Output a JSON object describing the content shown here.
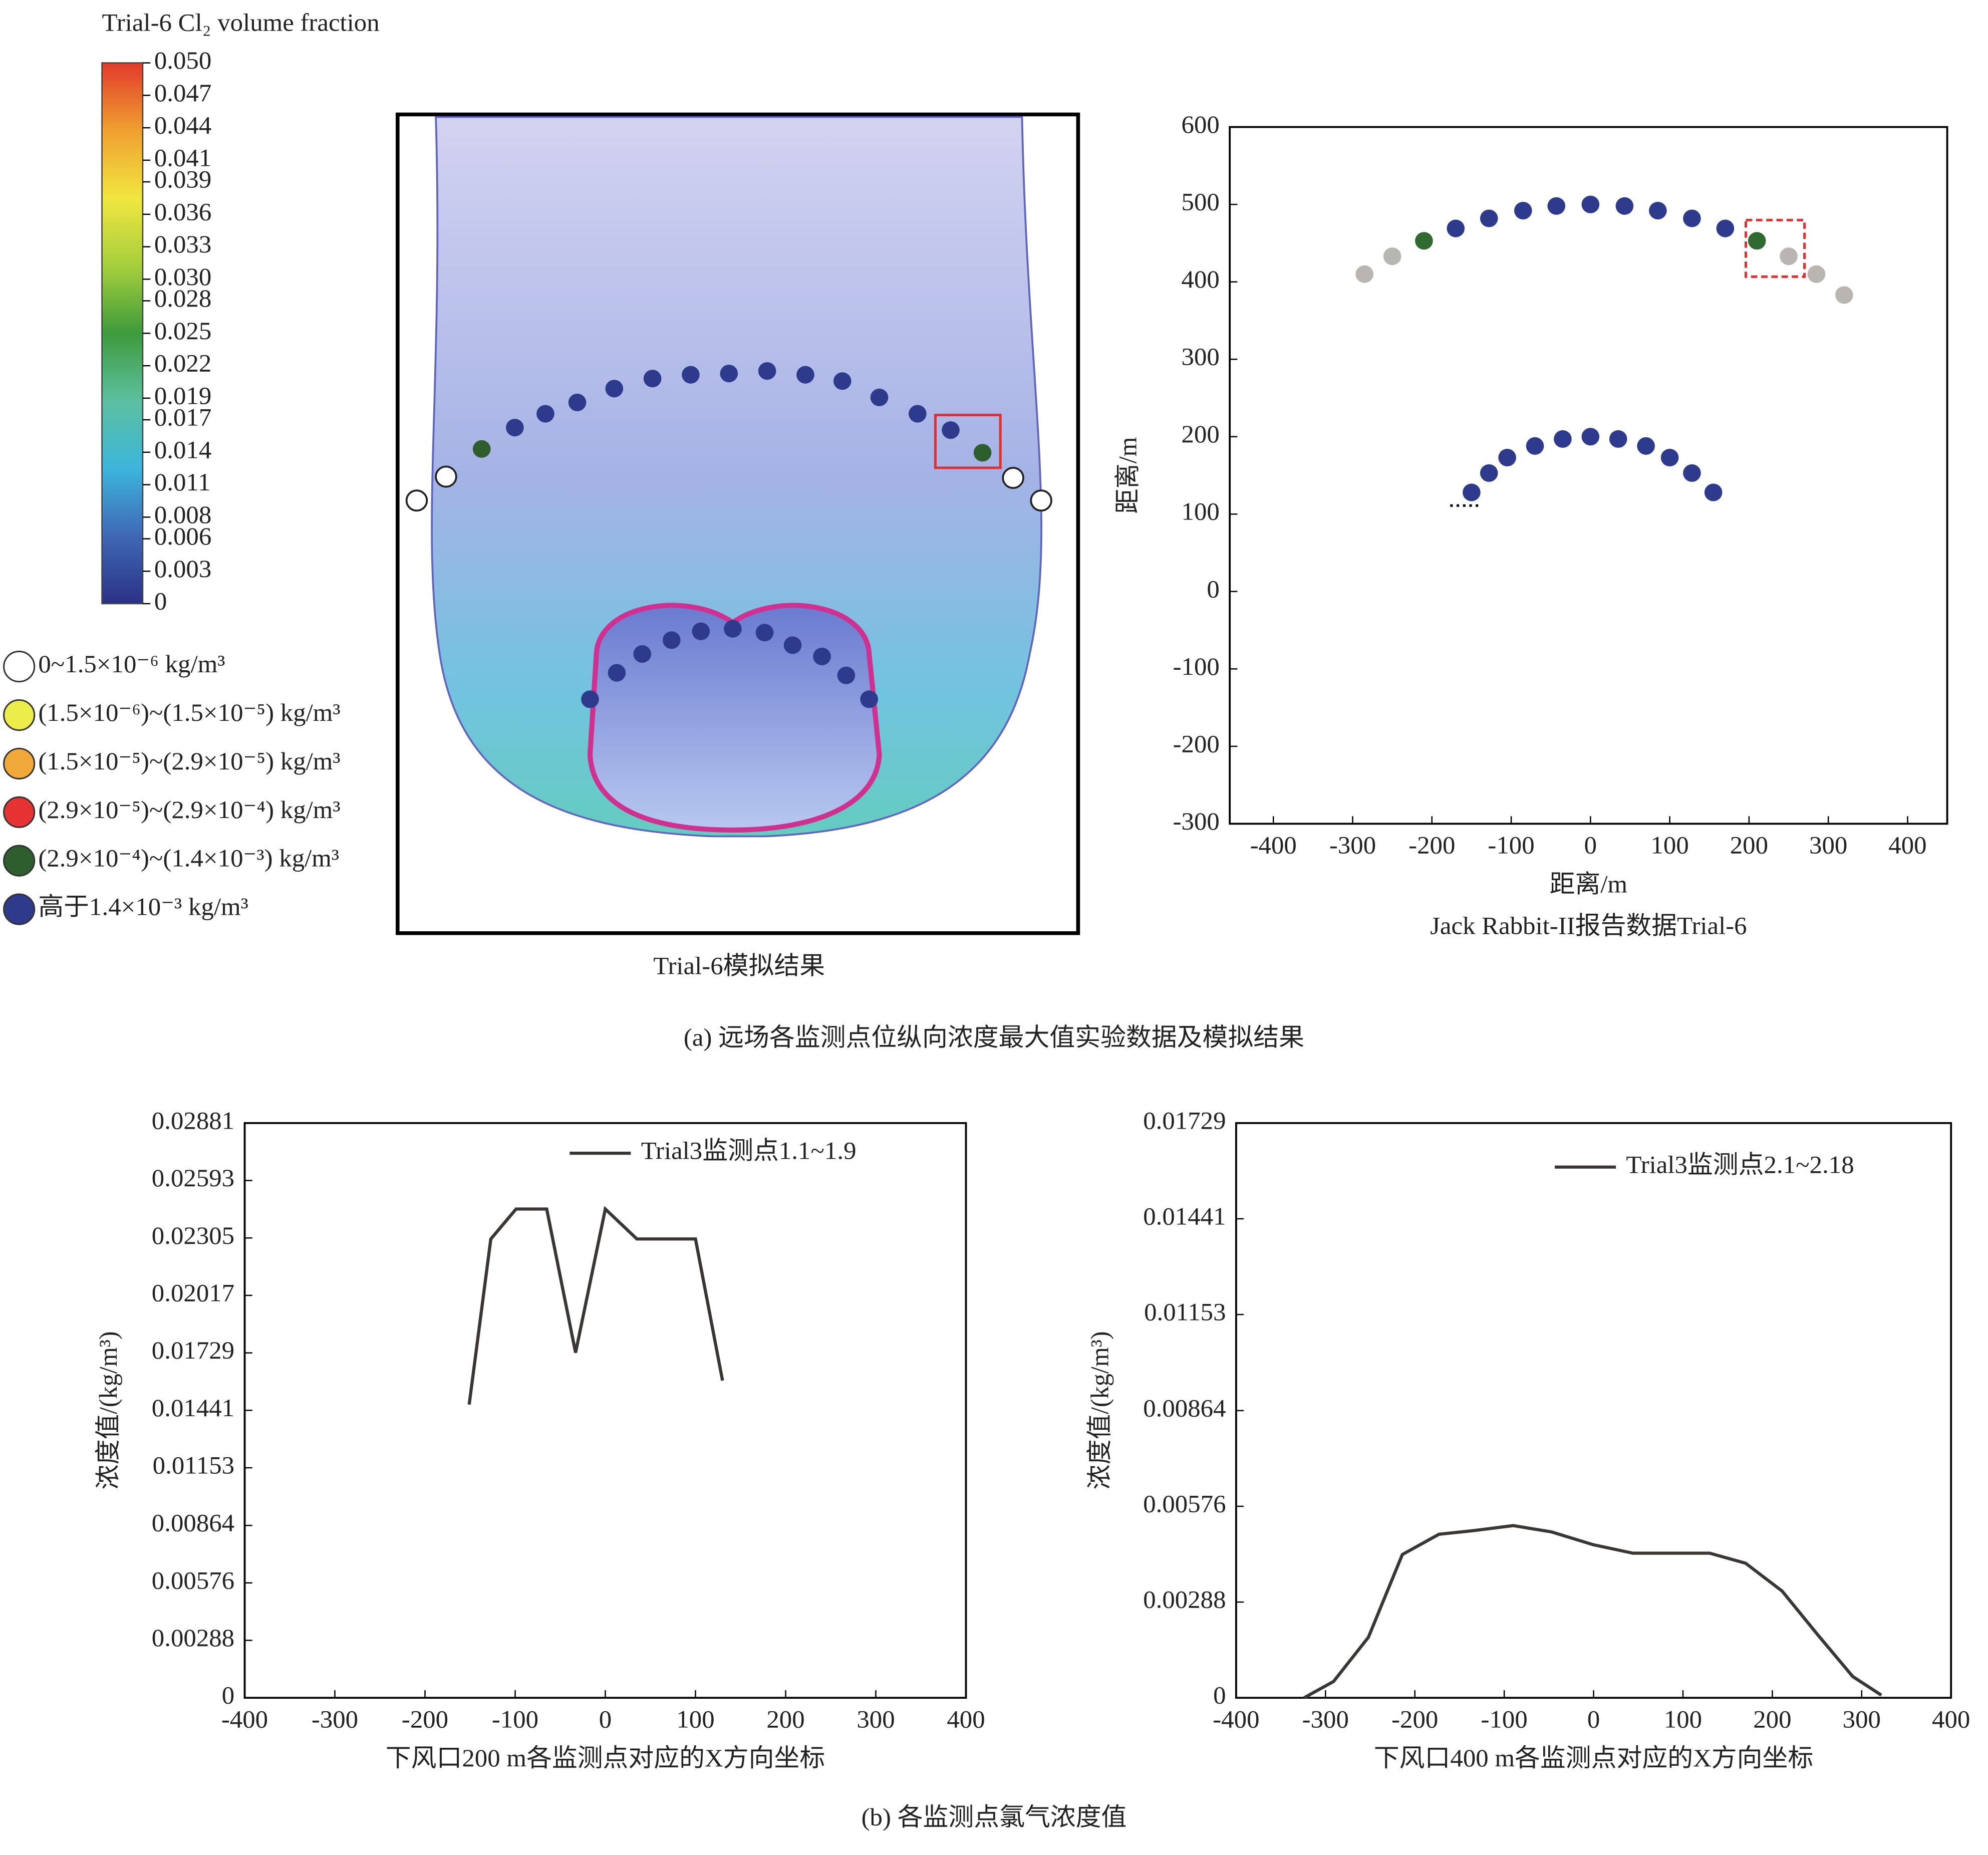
{
  "chart_data": [
    {
      "type": "colormap",
      "title": "Trial-6 Cl₂ volume fraction",
      "xlabel": "Trial-6模拟结果",
      "ylim": [
        0,
        0.05
      ],
      "yticks": [
        0,
        {
          "value": 0.003,
          "label": "0.003"
        },
        {
          "value": 0.006,
          "label": "0.006"
        },
        {
          "value": 0.008,
          "label": "0.008"
        },
        {
          "value": 0.011,
          "label": "0.011"
        },
        {
          "value": 0.014,
          "label": "0.014"
        },
        {
          "value": 0.017,
          "label": "0.017"
        },
        {
          "value": 0.019,
          "label": "0.019"
        },
        {
          "value": 0.022,
          "label": "0.022"
        },
        {
          "value": 0.025,
          "label": "0.025"
        },
        {
          "value": 0.028,
          "label": "0.028"
        },
        {
          "value": 0.03,
          "label": "0.030"
        },
        {
          "value": 0.033,
          "label": "0.033"
        },
        {
          "value": 0.036,
          "label": "0.036"
        },
        {
          "value": 0.039,
          "label": "0.039"
        },
        {
          "value": 0.041,
          "label": "0.041"
        },
        {
          "value": 0.044,
          "label": "0.044"
        },
        {
          "value": 0.047,
          "label": "0.047"
        },
        {
          "value": 0.05,
          "label": "0.050"
        }
      ],
      "colors": [
        "#2b3186",
        "#3f68b5",
        "#3db5dc",
        "#5cc0a0",
        "#3e9a3c",
        "#a6cf3c",
        "#f1e640",
        "#f0a030",
        "#e23a2c"
      ],
      "legend": [
        {
          "label": "0~1.5×10⁻⁶ kg/m³",
          "color": "#ffffff"
        },
        {
          "label": "(1.5×10⁻⁶)~(1.5×10⁻⁵) kg/m³",
          "color": "#ecec4a"
        },
        {
          "label": "(1.5×10⁻⁵)~(2.9×10⁻⁵) kg/m³",
          "color": "#f0a838"
        },
        {
          "label": "(2.9×10⁻⁵)~(2.9×10⁻⁴) kg/m³",
          "color": "#e63232"
        },
        {
          "label": "(2.9×10⁻⁴)~(1.4×10⁻³) kg/m³",
          "color": "#2e5e2e"
        },
        {
          "label": "高于1.4×10⁻³ kg/m³",
          "color": "#2e3a8c"
        }
      ]
    },
    {
      "type": "scatter",
      "title": "Jack Rabbit-II报告数据Trial-6",
      "xlabel": "距离/m",
      "ylabel": "距离/m",
      "xlim": [
        -455,
        450
      ],
      "ylim": [
        -300,
        600
      ],
      "xticks": [
        -400,
        -300,
        -200,
        -100,
        0,
        100,
        200,
        300,
        400
      ],
      "yticks": [
        -300,
        -200,
        -100,
        0,
        100,
        200,
        300,
        400,
        500,
        600
      ],
      "series": [
        {
          "color": "#b9b5b1",
          "x": [
            -285,
            -250,
            250,
            285,
            320
          ],
          "y": [
            410,
            433,
            433,
            410,
            383
          ]
        },
        {
          "color": "#2f6b30",
          "x": [
            -210,
            210
          ],
          "y": [
            453,
            453
          ]
        },
        {
          "color": "#2e3a8c",
          "x": [
            -170,
            -128,
            -85,
            -43,
            0,
            43,
            85,
            128,
            170,
            -150,
            -128,
            -105,
            -70,
            -35,
            0,
            35,
            70,
            100,
            128,
            155
          ],
          "y": [
            469,
            482,
            492,
            498,
            500,
            498,
            492,
            482,
            469,
            128,
            153,
            173,
            188,
            197,
            200,
            197,
            188,
            173,
            153,
            128
          ]
        }
      ]
    },
    {
      "type": "line",
      "xlabel": "下风口200 m各监测点对应的X方向坐标",
      "ylabel": "浓度值/(kg/m³)",
      "xlim": [
        -400,
        400
      ],
      "ylim": [
        0,
        0.02881
      ],
      "xticks": [
        -400,
        -300,
        -200,
        -100,
        0,
        100,
        200,
        300,
        400
      ],
      "yticks": [
        0,
        0.00288,
        0.00576,
        0.00864,
        0.01153,
        0.01441,
        0.01729,
        0.02017,
        0.02305,
        0.02593,
        0.02881
      ],
      "legend_corner": "upper right",
      "series": [
        {
          "name": "Trial3监测点1.1~1.9",
          "color": "#3a3634",
          "x": [
            -151,
            -127,
            -99,
            -65,
            -33,
            0,
            35,
            100,
            130
          ],
          "values": [
            0.0147,
            0.023,
            0.0245,
            0.0245,
            0.0173,
            0.0245,
            0.023,
            0.023,
            0.0159
          ]
        }
      ]
    },
    {
      "type": "line",
      "xlabel": "下风口400 m各监测点对应的X方向坐标",
      "ylabel": "浓度值/(kg/m³)",
      "xlim": [
        -400,
        400
      ],
      "ylim": [
        0,
        0.01729
      ],
      "xticks": [
        -400,
        -300,
        -200,
        -100,
        0,
        100,
        200,
        300,
        400
      ],
      "yticks": [
        0,
        0.00288,
        0.00576,
        0.00864,
        0.01153,
        0.01441,
        0.01729
      ],
      "legend_corner": "upper right",
      "series": [
        {
          "name": "Trial3监测点2.1~2.18",
          "color": "#3a3634",
          "x": [
            -324,
            -291,
            -252,
            -214,
            -173,
            -134,
            -90,
            -47,
            -1,
            44,
            87,
            130,
            170,
            211,
            251,
            290,
            322
          ],
          "values": [
            0,
            0.00049,
            0.00182,
            0.00431,
            0.00492,
            0.00503,
            0.00518,
            0.00499,
            0.00461,
            0.00435,
            0.00435,
            0.00435,
            0.00405,
            0.00321,
            0.00189,
            0.00064,
            8e-05
          ]
        }
      ]
    }
  ],
  "captions": {
    "a": "(a) 远场各监测点位纵向浓度最大值实验数据及模拟结果",
    "b": "(b) 各监测点氯气浓度值"
  }
}
